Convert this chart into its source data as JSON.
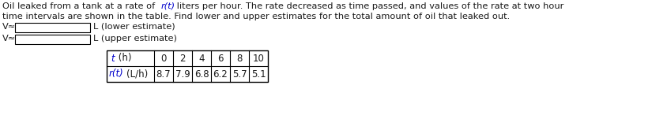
{
  "line1_prefix": "Oil leaked from a tank at a rate of ",
  "line1_italic": "r(t)",
  "line1_suffix": " liters per hour. The rate decreased as time passed, and values of the rate at two hour",
  "line2": "time intervals are shown in the table. Find lower and upper estimates for the total amount of oil that leaked out.",
  "v_sym": "V≈",
  "label_lower": "L (lower estimate)",
  "label_upper": "L (upper estimate)",
  "t_values": [
    "0",
    "2",
    "4",
    "6",
    "8",
    "10"
  ],
  "rt_values": [
    "8.7",
    "7.9",
    "6.8",
    "6.2",
    "5.7",
    "5.1"
  ],
  "red": "#0000CC",
  "black": "#1a1a1a",
  "bg": "#ffffff",
  "fs_body": 8.2,
  "fs_table": 8.5
}
